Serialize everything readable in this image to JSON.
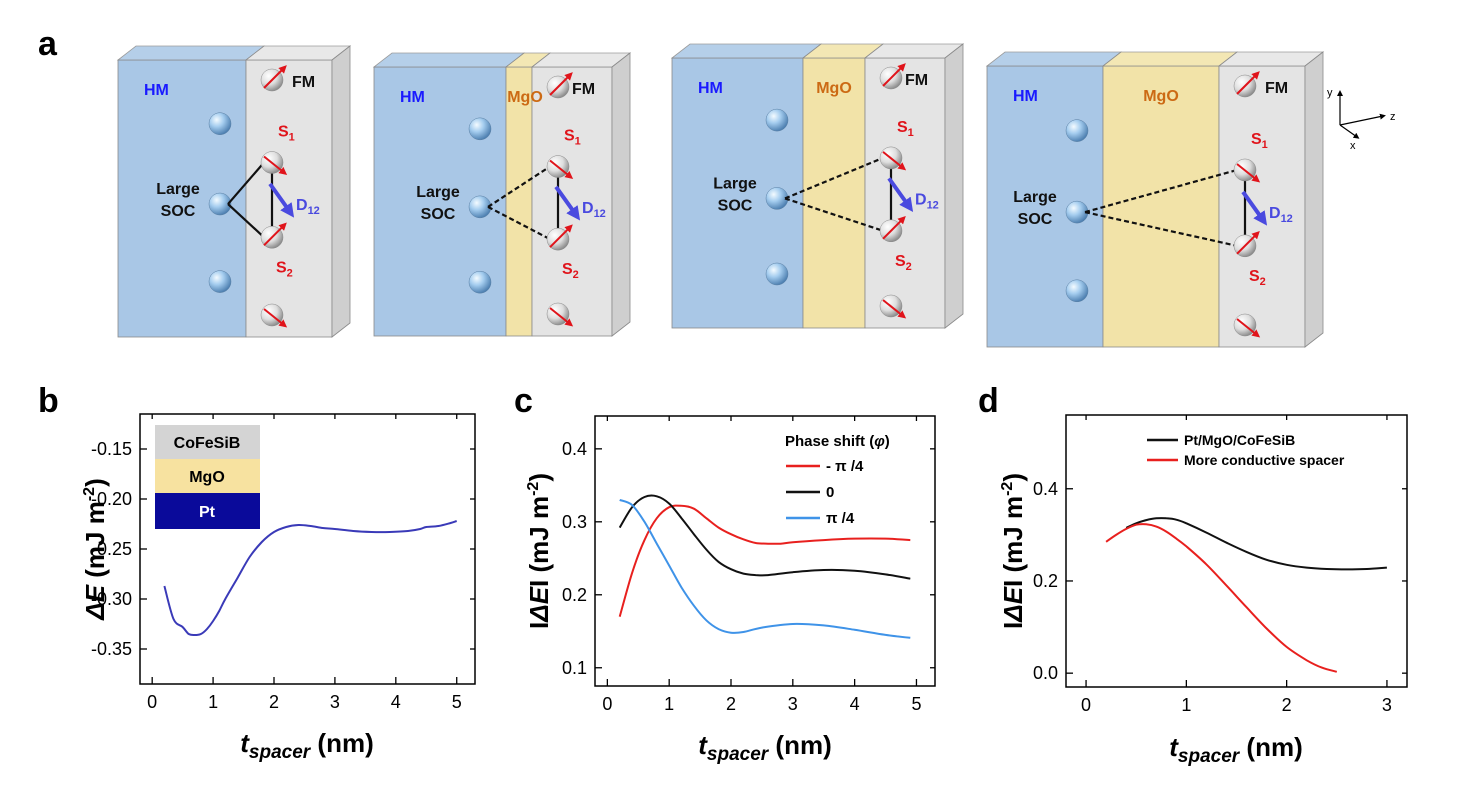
{
  "panel_labels": {
    "a": "a",
    "b": "b",
    "c": "c",
    "d": "d"
  },
  "schematic": {
    "hm_label": "HM",
    "fm_label": "FM",
    "mgo_label": "MgO",
    "soc_line1": "Large",
    "soc_line2": "SOC",
    "s1_base": "S",
    "s1_sub": "1",
    "s2_base": "S",
    "s2_sub": "2",
    "d12_base": "D",
    "d12_sub": "12",
    "axes": {
      "y": "y",
      "z": "z",
      "x": "x"
    }
  },
  "colors": {
    "hm_fill": "#a9c7e6",
    "mgo_fill": "#f2e3a8",
    "fm_fill": "#e4e4e4",
    "label_blue": "#1a1aff",
    "label_orange": "#cc6a14",
    "spin_red": "#e0141b",
    "dmi_blue": "#4a4adf",
    "line_navy": "#3a3ab8",
    "series_red": "#e8201e",
    "series_black": "#111111",
    "series_blue": "#3f93e8"
  },
  "chart_data": [
    {
      "panel": "b",
      "type": "line",
      "ylabel_base": "ΔE",
      "ylabel_unit": " (mJ m",
      "ylabel_exp": "-2",
      "ylabel_close": ")",
      "xlabel_base": "t",
      "xlabel_sub": "spacer",
      "xlabel_unit": " (nm)",
      "xlim": [
        -0.2,
        5.3
      ],
      "ylim": [
        -0.385,
        -0.115
      ],
      "xticks": [
        0,
        1,
        2,
        3,
        4,
        5
      ],
      "yticks": [
        -0.35,
        -0.3,
        -0.25,
        -0.2,
        -0.15
      ],
      "ytick_labels": [
        "-0.35",
        "-0.30",
        "-0.25",
        "-0.20",
        "-0.15"
      ],
      "grid": false,
      "inset_stack": [
        "CoFeSiB",
        "MgO",
        "Pt"
      ],
      "series": [
        {
          "x": [
            0.2,
            0.35,
            0.5,
            0.6,
            0.7,
            0.8,
            0.9,
            1.0,
            1.1,
            1.2,
            1.4,
            1.6,
            1.8,
            2.0,
            2.2,
            2.4,
            2.6,
            2.8,
            3.0,
            3.3,
            3.6,
            3.9,
            4.2,
            4.4,
            4.5,
            4.7,
            4.9,
            5.0
          ],
          "y": [
            -0.287,
            -0.32,
            -0.328,
            -0.335,
            -0.336,
            -0.335,
            -0.33,
            -0.322,
            -0.312,
            -0.3,
            -0.279,
            -0.258,
            -0.243,
            -0.233,
            -0.228,
            -0.226,
            -0.227,
            -0.229,
            -0.23,
            -0.232,
            -0.233,
            -0.233,
            -0.232,
            -0.23,
            -0.228,
            -0.227,
            -0.224,
            -0.222
          ]
        }
      ]
    },
    {
      "panel": "c",
      "type": "line",
      "ylabel_base": "I",
      "ylabel_mid": "ΔE",
      "ylabel_tail": "I",
      "ylabel_unit": " (mJ m",
      "ylabel_exp": "-2",
      "ylabel_close": ")",
      "xlabel_base": "t",
      "xlabel_sub": "spacer",
      "xlabel_unit": " (nm)",
      "xlim": [
        -0.2,
        5.3
      ],
      "ylim": [
        0.075,
        0.445
      ],
      "xticks": [
        0,
        1,
        2,
        3,
        4,
        5
      ],
      "yticks": [
        0.1,
        0.2,
        0.3,
        0.4
      ],
      "ytick_labels": [
        "0.1",
        "0.2",
        "0.3",
        "0.4"
      ],
      "grid": false,
      "legend_title": "Phase shift (",
      "legend_symbol": "φ",
      "legend_close": ")",
      "legend_position": "top-right",
      "series": [
        {
          "name": "- π /4",
          "color": "red",
          "x": [
            0.2,
            0.4,
            0.6,
            0.8,
            1.0,
            1.2,
            1.4,
            1.6,
            1.8,
            2.0,
            2.2,
            2.4,
            2.6,
            2.8,
            3.0,
            3.5,
            4.0,
            4.5,
            4.9
          ],
          "y": [
            0.17,
            0.23,
            0.275,
            0.305,
            0.32,
            0.322,
            0.318,
            0.305,
            0.292,
            0.283,
            0.276,
            0.271,
            0.27,
            0.27,
            0.272,
            0.275,
            0.277,
            0.277,
            0.275
          ]
        },
        {
          "name": "0",
          "color": "black",
          "x": [
            0.2,
            0.4,
            0.6,
            0.8,
            1.0,
            1.2,
            1.4,
            1.6,
            1.8,
            2.0,
            2.2,
            2.4,
            2.6,
            3.0,
            3.5,
            4.0,
            4.5,
            4.9
          ],
          "y": [
            0.292,
            0.32,
            0.334,
            0.335,
            0.325,
            0.305,
            0.283,
            0.262,
            0.245,
            0.235,
            0.229,
            0.227,
            0.227,
            0.231,
            0.234,
            0.233,
            0.228,
            0.222
          ]
        },
        {
          "name": "π /4",
          "color": "blue",
          "x": [
            0.2,
            0.4,
            0.6,
            0.8,
            1.0,
            1.2,
            1.4,
            1.6,
            1.8,
            2.0,
            2.2,
            2.5,
            3.0,
            3.5,
            4.0,
            4.5,
            4.9
          ],
          "y": [
            0.33,
            0.323,
            0.3,
            0.27,
            0.24,
            0.21,
            0.185,
            0.165,
            0.153,
            0.148,
            0.149,
            0.155,
            0.16,
            0.158,
            0.152,
            0.145,
            0.141
          ]
        }
      ]
    },
    {
      "panel": "d",
      "type": "line",
      "ylabel_base": "I",
      "ylabel_mid": "ΔE",
      "ylabel_tail": "I",
      "ylabel_unit": " (mJ m",
      "ylabel_exp": "-2",
      "ylabel_close": ")",
      "xlabel_base": "t",
      "xlabel_sub": "spacer",
      "xlabel_unit": " (nm)",
      "xlim": [
        -0.2,
        3.2
      ],
      "ylim": [
        -0.03,
        0.56
      ],
      "xticks": [
        0,
        1,
        2,
        3
      ],
      "yticks": [
        0.0,
        0.2,
        0.4
      ],
      "ytick_labels": [
        "0.0",
        "0.2",
        "0.4"
      ],
      "grid": false,
      "legend_position": "top-right",
      "series": [
        {
          "name": "Pt/MgO/CoFeSiB",
          "color": "black",
          "x": [
            0.4,
            0.5,
            0.6,
            0.7,
            0.8,
            0.9,
            1.0,
            1.2,
            1.4,
            1.6,
            1.8,
            2.0,
            2.2,
            2.4,
            2.6,
            2.8,
            3.0
          ],
          "y": [
            0.315,
            0.325,
            0.332,
            0.336,
            0.336,
            0.333,
            0.325,
            0.305,
            0.283,
            0.263,
            0.246,
            0.235,
            0.229,
            0.226,
            0.225,
            0.226,
            0.229
          ]
        },
        {
          "name": "More conductive spacer",
          "color": "red",
          "x": [
            0.2,
            0.3,
            0.4,
            0.5,
            0.6,
            0.7,
            0.8,
            0.9,
            1.0,
            1.2,
            1.4,
            1.6,
            1.8,
            2.0,
            2.2,
            2.35,
            2.5
          ],
          "y": [
            0.285,
            0.3,
            0.313,
            0.322,
            0.323,
            0.318,
            0.307,
            0.292,
            0.275,
            0.236,
            0.19,
            0.143,
            0.097,
            0.057,
            0.028,
            0.012,
            0.003
          ]
        }
      ]
    }
  ]
}
